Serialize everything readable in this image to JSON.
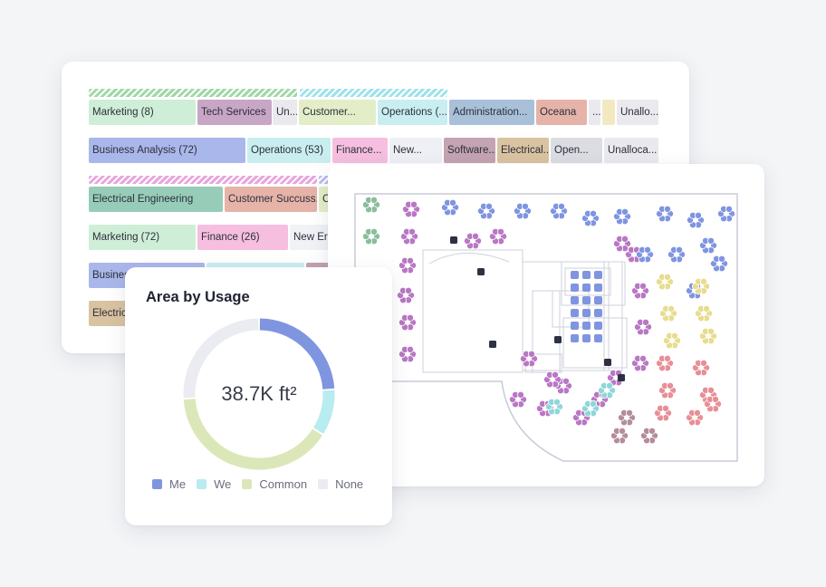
{
  "stack": {
    "rows": [
      {
        "hatches": [
          {
            "color": "#9fd8a6",
            "span": [
              98,
              328
            ]
          },
          {
            "color": "#9ee2ea",
            "span": [
              331,
              494
            ]
          }
        ],
        "segments": [
          {
            "label": "Marketing (8)",
            "color": "#cfeed7",
            "span": [
              98,
              216
            ]
          },
          {
            "label": "Tech Services",
            "color": "#c8a6c6",
            "span": [
              218,
              300
            ]
          },
          {
            "label": "Un...",
            "color": "#e9e9ee",
            "span": [
              301,
              328
            ]
          },
          {
            "label": "Customer...",
            "color": "#e3eec8",
            "span": [
              330,
              415
            ]
          },
          {
            "label": "Operations (...",
            "color": "#c9eef0",
            "span": [
              417,
              494
            ]
          },
          {
            "label": "Administration...",
            "color": "#a9c0d9",
            "span": [
              496,
              590
            ]
          },
          {
            "label": "Oceana",
            "color": "#e6b3a8",
            "span": [
              592,
              648
            ]
          },
          {
            "label": "...",
            "color": "#e9e9ee",
            "span": [
              650,
              663
            ]
          },
          {
            "label": "",
            "color": "#f3e9c1",
            "span": [
              665,
              679
            ]
          },
          {
            "label": "Unallo...",
            "color": "#e9e9ee",
            "span": [
              681,
              727
            ]
          }
        ]
      },
      {
        "hatches": [],
        "segments": [
          {
            "label": "Business Analysis (72)",
            "color": "#aab7ea",
            "span": [
              98,
              271
            ]
          },
          {
            "label": "Operations (53)",
            "color": "#c9eef0",
            "span": [
              273,
              365
            ]
          },
          {
            "label": "Finance...",
            "color": "#f6bedf",
            "span": [
              367,
              428
            ]
          },
          {
            "label": "New...",
            "color": "#eef0f5",
            "span": [
              430,
              488
            ]
          },
          {
            "label": "Software...",
            "color": "#c4a3b2",
            "span": [
              490,
              547
            ]
          },
          {
            "label": "Electrical...",
            "color": "#d9c3a1",
            "span": [
              549,
              606
            ]
          },
          {
            "label": "Open...",
            "color": "#dcdde3",
            "span": [
              608,
              665
            ]
          },
          {
            "label": "Unalloca...",
            "color": "#e9e9ee",
            "span": [
              667,
              727
            ]
          }
        ]
      },
      {
        "hatches": [
          {
            "color": "#e7a6dd",
            "span": [
              98,
              350
            ]
          },
          {
            "color": "#b8bdf0",
            "span": [
              352,
              365
            ]
          }
        ],
        "segments": [
          {
            "label": "Electrical Engineering",
            "color": "#97cdb8",
            "span": [
              98,
              246
            ]
          },
          {
            "label": "Customer Succuss...",
            "color": "#e6b3a8",
            "span": [
              248,
              350
            ]
          },
          {
            "label": "C",
            "color": "#e3eec8",
            "span": [
              352,
              365
            ]
          }
        ]
      },
      {
        "hatches": [],
        "segments": [
          {
            "label": "Marketing (72)",
            "color": "#cfeed7",
            "span": [
              98,
              216
            ]
          },
          {
            "label": "Finance (26)",
            "color": "#f6bedf",
            "span": [
              218,
              318
            ]
          },
          {
            "label": "New Er",
            "color": "#f0f2f6",
            "span": [
              320,
              365
            ]
          }
        ]
      },
      {
        "hatches": [],
        "segments": [
          {
            "label": "Busines",
            "color": "#aab7ea",
            "span": [
              98,
              226
            ]
          },
          {
            "label": "",
            "color": "#c9eef0",
            "span": [
              228,
              336
            ]
          },
          {
            "label": "",
            "color": "#c4a3b2",
            "span": [
              338,
              365
            ]
          }
        ]
      },
      {
        "hatches": [],
        "segments": [
          {
            "label": "Electric",
            "color": "#d9c3a1",
            "span": [
              98,
              140
            ]
          }
        ]
      }
    ]
  },
  "floorplan": {
    "legend_colors": {
      "me": "#7f95e0",
      "we": "#aee8ea",
      "common": "#dbe7b8",
      "purple": "#b977c4",
      "teal": "#8fd6d9",
      "yellow": "#e8dc8e",
      "coral": "#e88f95",
      "green": "#8bbd9c",
      "mauve": "#b58c9b"
    }
  },
  "donut": {
    "title": "Area by Usage",
    "center_value": "38.7K ft²",
    "slices": [
      {
        "name": "Me",
        "value": 24,
        "color": "#7f95e0"
      },
      {
        "name": "We",
        "value": 10,
        "color": "#b8ecf0"
      },
      {
        "name": "Common",
        "value": 40,
        "color": "#dbe7b8"
      },
      {
        "name": "None",
        "value": 26,
        "color": "#ebecf1"
      }
    ]
  }
}
